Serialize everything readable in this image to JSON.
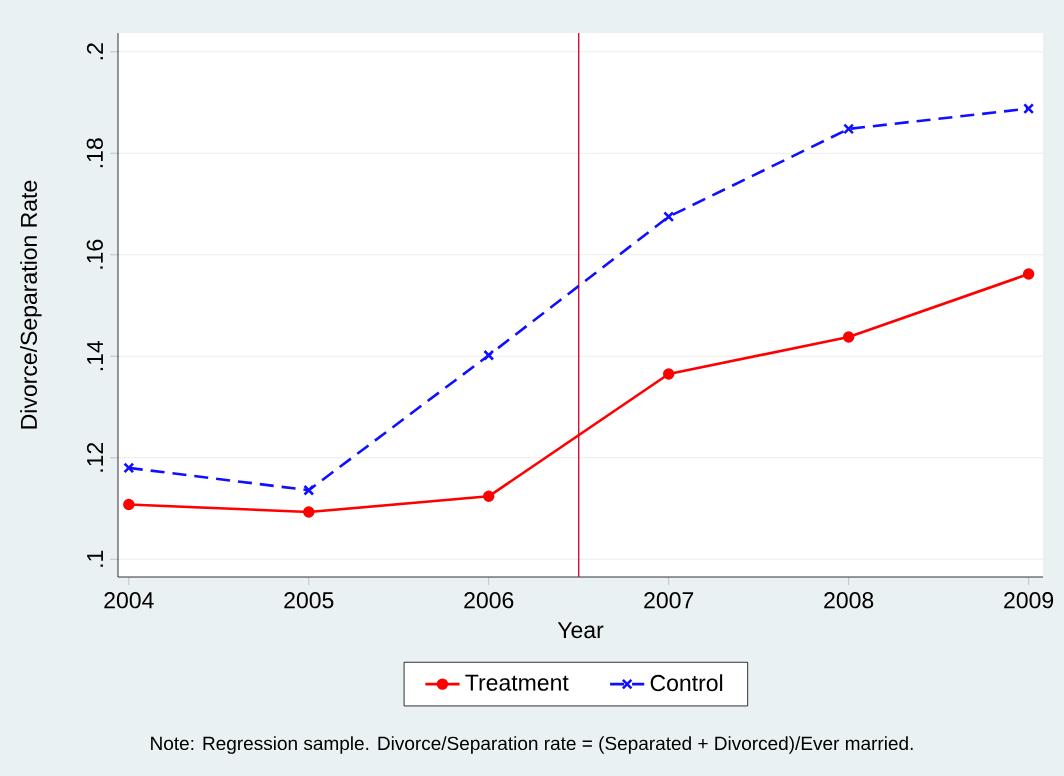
{
  "chart_data": {
    "type": "line",
    "xlabel": "Year",
    "ylabel": "Divorce/Separation Rate",
    "x": [
      2004,
      2005,
      2006,
      2007,
      2008,
      2009
    ],
    "series": [
      {
        "name": "Treatment",
        "color": "#ff0000",
        "marker": "circle",
        "line_style": "solid",
        "values": [
          0.1108,
          0.1093,
          0.1124,
          0.1365,
          0.1438,
          0.1562
        ]
      },
      {
        "name": "Control",
        "color": "#1010ff",
        "marker": "cross",
        "line_style": "dashed",
        "values": [
          0.118,
          0.1136,
          0.1402,
          0.1675,
          0.1848,
          0.1888
        ]
      }
    ],
    "xlim": [
      2003.94,
      2009.08
    ],
    "ylim": [
      0.0965,
      0.2037
    ],
    "xticks": [
      2004,
      2005,
      2006,
      2007,
      2008,
      2009
    ],
    "yticks": [
      {
        "value": 0.1,
        "label": ".1"
      },
      {
        "value": 0.12,
        "label": ".12"
      },
      {
        "value": 0.14,
        "label": ".14"
      },
      {
        "value": 0.16,
        "label": ".16"
      },
      {
        "value": 0.18,
        "label": ".18"
      },
      {
        "value": 0.2,
        "label": ".2"
      }
    ],
    "grid": "y",
    "legend": "bottom",
    "ref_lines": [
      {
        "axis": "x",
        "value": 2006.5,
        "color": "#d0103a"
      }
    ],
    "annotations": [
      "Note: Regression sample. Divorce/Separation rate = (Separated + Divorced)/Ever married."
    ]
  }
}
